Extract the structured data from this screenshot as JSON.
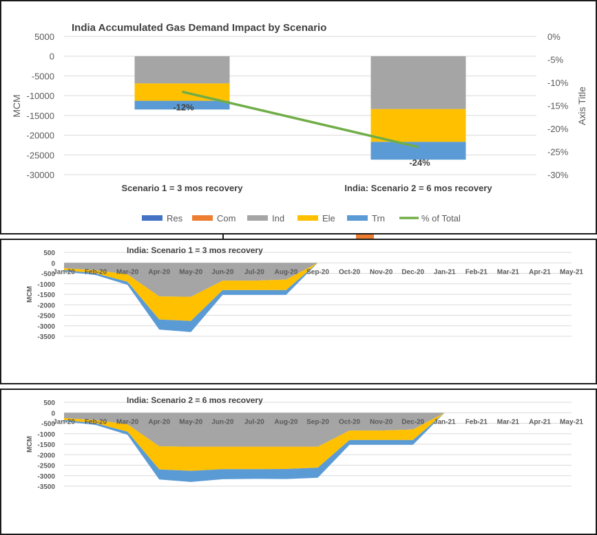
{
  "colors": {
    "Res": "#4472C4",
    "Com": "#ED7D31",
    "Ind": "#A5A5A5",
    "Ele": "#FFC000",
    "Trn": "#5B9BD5",
    "pct": "#70AD47",
    "grid": "#D9D9D9",
    "text": "#595959",
    "title": "#404040"
  },
  "chart_data": [
    {
      "type": "bar",
      "title": "India Accumulated Gas Demand Impact by Scenario",
      "ylabel": "MCM",
      "y2label": "Axis Title",
      "ylim": [
        -30000,
        5000
      ],
      "yticks": [
        5000,
        0,
        -5000,
        -10000,
        -15000,
        -20000,
        -25000,
        -30000
      ],
      "y2lim": [
        -0.3,
        0.0
      ],
      "y2ticks": [
        "0%",
        "-5%",
        "-10%",
        "-15%",
        "-20%",
        "-25%",
        "-30%"
      ],
      "categories": [
        "Scenario 1 = 3 mos recovery",
        "India: Scenario 2 = 6 mos recovery"
      ],
      "series": [
        {
          "name": "Res",
          "values": [
            0,
            0
          ]
        },
        {
          "name": "Com",
          "values": [
            0,
            0
          ]
        },
        {
          "name": "Ind",
          "values": [
            -6900,
            -13400
          ]
        },
        {
          "name": "Ele",
          "values": [
            -4400,
            -8300
          ]
        },
        {
          "name": "Trn",
          "values": [
            -2200,
            -4500
          ]
        }
      ],
      "line": {
        "name": "% of Total",
        "values": [
          -0.12,
          -0.24
        ],
        "labels": [
          "-12%",
          "-24%"
        ]
      },
      "legend": [
        "Res",
        "Com",
        "Ind",
        "Ele",
        "Trn",
        "% of Total"
      ],
      "legend_position": "bottom",
      "grid": true
    },
    {
      "type": "area",
      "title": "India: Scenario 1 = 3 mos recovery",
      "ylabel": "MCM",
      "ylim": [
        -3500,
        500
      ],
      "yticks": [
        500,
        0,
        -500,
        -1000,
        -1500,
        -2000,
        -2500,
        -3000,
        -3500
      ],
      "categories": [
        "Jan-20",
        "Feb-20",
        "Mar-20",
        "Apr-20",
        "May-20",
        "Jun-20",
        "Jul-20",
        "Aug-20",
        "Sep-20",
        "Oct-20",
        "Nov-20",
        "Dec-20",
        "Jan-21",
        "Feb-21",
        "Mar-21",
        "Apr-21",
        "May-21"
      ],
      "series": [
        {
          "name": "Ind",
          "values": [
            -250,
            -350,
            -550,
            -1600,
            -1620,
            -850,
            -850,
            -800,
            0,
            0,
            0,
            0,
            0,
            0,
            0,
            0,
            0
          ]
        },
        {
          "name": "Ele",
          "values": [
            -100,
            -150,
            -350,
            -1100,
            -1150,
            -450,
            -450,
            -500,
            0,
            0,
            0,
            0,
            0,
            0,
            0,
            0,
            0
          ]
        },
        {
          "name": "Trn",
          "values": [
            -60,
            -80,
            -150,
            -480,
            -530,
            -230,
            -230,
            -230,
            0,
            0,
            0,
            0,
            0,
            0,
            0,
            0,
            0
          ]
        }
      ],
      "grid": true
    },
    {
      "type": "area",
      "title": "India: Scenario 2 = 6 mos recovery",
      "ylabel": "MCM",
      "ylim": [
        -3500,
        500
      ],
      "yticks": [
        500,
        0,
        -500,
        -1000,
        -1500,
        -2000,
        -2500,
        -3000,
        -3500
      ],
      "categories": [
        "Jan-20",
        "Feb-20",
        "Mar-20",
        "Apr-20",
        "May-20",
        "Jun-20",
        "Jul-20",
        "Aug-20",
        "Sep-20",
        "Oct-20",
        "Nov-20",
        "Dec-20",
        "Jan-21",
        "Feb-21",
        "Mar-21",
        "Apr-21",
        "May-21"
      ],
      "series": [
        {
          "name": "Ind",
          "values": [
            -250,
            -350,
            -550,
            -1600,
            -1620,
            -1620,
            -1620,
            -1620,
            -1620,
            -850,
            -850,
            -800,
            0,
            0,
            0,
            0,
            0
          ]
        },
        {
          "name": "Ele",
          "values": [
            -100,
            -150,
            -350,
            -1100,
            -1150,
            -1070,
            -1070,
            -1060,
            -1000,
            -450,
            -450,
            -500,
            0,
            0,
            0,
            0,
            0
          ]
        },
        {
          "name": "Trn",
          "values": [
            -60,
            -80,
            -150,
            -480,
            -530,
            -480,
            -460,
            -480,
            -480,
            -230,
            -230,
            -230,
            0,
            0,
            0,
            0,
            0
          ]
        }
      ],
      "grid": true
    }
  ]
}
